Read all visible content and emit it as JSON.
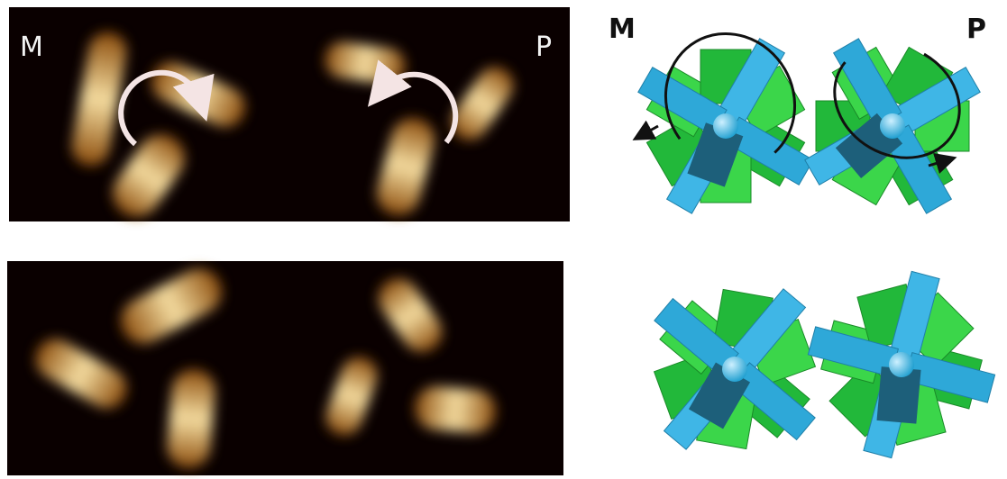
{
  "stm_images": {
    "top": {
      "labels": {
        "left": "M",
        "right": "P"
      }
    }
  },
  "models": {
    "top": {
      "labels": {
        "left": "M",
        "right": "P"
      }
    }
  }
}
